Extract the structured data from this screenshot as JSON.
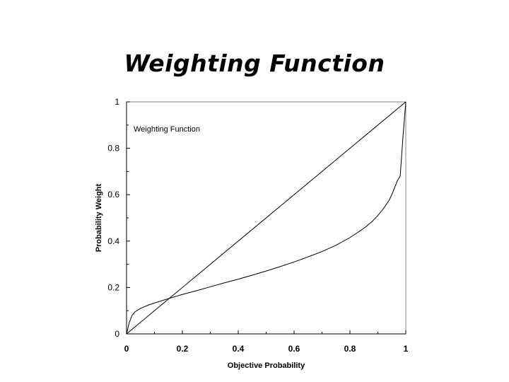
{
  "slide": {
    "title": "Weighting Function"
  },
  "chart_data": {
    "type": "line",
    "legend_label": "Weighting Function",
    "legend_position": "top-left",
    "xlabel": "Objective Probability",
    "ylabel": "Probability Weight",
    "xlim": [
      0,
      1
    ],
    "ylim": [
      0,
      1
    ],
    "x_ticks": [
      "0",
      "0.2",
      "0.4",
      "0.6",
      "0.8",
      "1"
    ],
    "y_ticks": [
      "0",
      "0.2",
      "0.4",
      "0.6",
      "0.8",
      "1"
    ],
    "grid": false,
    "series": [
      {
        "role": "reference",
        "x": [
          0,
          1
        ],
        "y": [
          0,
          1
        ]
      },
      {
        "role": "weighting",
        "x": [
          0,
          0.01,
          0.02,
          0.03,
          0.05,
          0.08,
          0.1,
          0.15,
          0.2,
          0.25,
          0.3,
          0.35,
          0.4,
          0.45,
          0.5,
          0.55,
          0.6,
          0.65,
          0.7,
          0.75,
          0.8,
          0.85,
          0.88,
          0.9,
          0.92,
          0.94,
          0.95,
          0.96,
          0.97,
          0.98,
          0.99,
          1
        ],
        "y": [
          0,
          0.05,
          0.08,
          0.095,
          0.11,
          0.125,
          0.133,
          0.152,
          0.17,
          0.186,
          0.203,
          0.22,
          0.236,
          0.253,
          0.271,
          0.29,
          0.31,
          0.332,
          0.355,
          0.382,
          0.415,
          0.455,
          0.485,
          0.51,
          0.54,
          0.575,
          0.6,
          0.63,
          0.66,
          0.68,
          0.85,
          1
        ]
      }
    ]
  }
}
